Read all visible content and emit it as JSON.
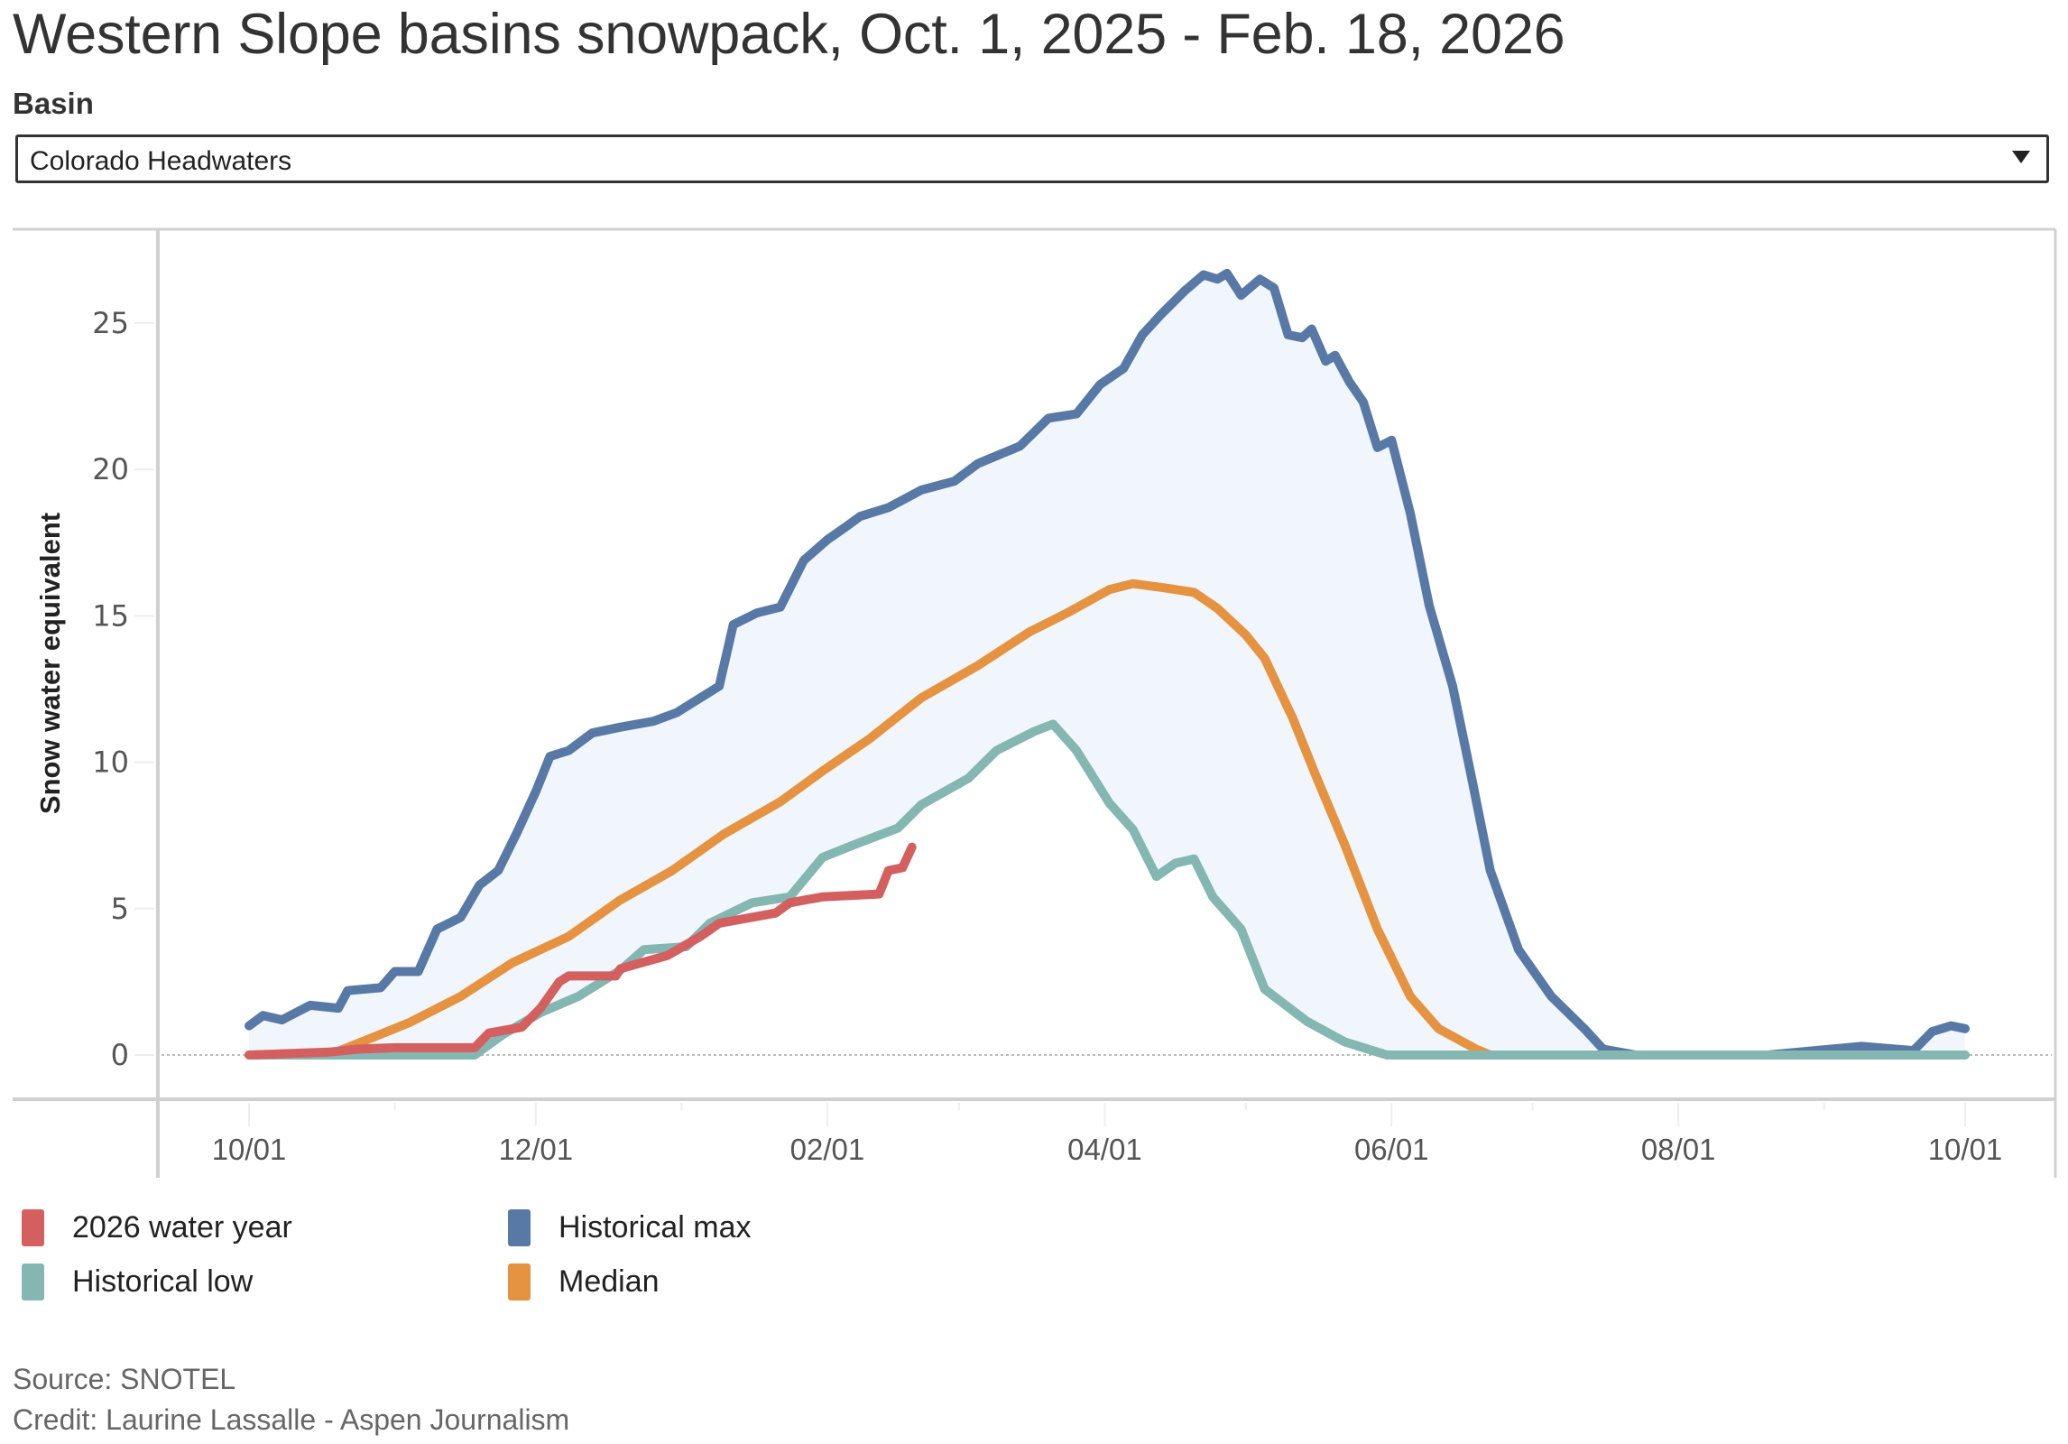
{
  "title": "Western Slope basins snowpack, Oct. 1, 2025 - Feb. 18, 2026",
  "filter": {
    "label": "Basin",
    "selected": "Colorado Headwaters",
    "icon": "triangle-down-icon"
  },
  "legend": [
    {
      "label": "2026 water year",
      "color": "#d45f5f"
    },
    {
      "label": "Historical max",
      "color": "#5879a6"
    },
    {
      "label": "Historical low",
      "color": "#84b6b2"
    },
    {
      "label": "Median",
      "color": "#e69341"
    }
  ],
  "footer": {
    "source": "Source: SNOTEL",
    "credit": "Credit: Laurine Lassalle - Aspen Journalism"
  },
  "chart_data": {
    "type": "line",
    "title": "Western Slope basins snowpack, Oct. 1, 2025 - Feb. 18, 2026",
    "xlabel": "",
    "ylabel": "Snow water equivalent",
    "x_unit": "day of water year (0 = Oct 1)",
    "xlim": [
      0,
      365
    ],
    "ylim": [
      -1.5,
      28.5
    ],
    "yticks": [
      0,
      5,
      10,
      15,
      20,
      25
    ],
    "xticks": [
      {
        "day": 0,
        "label": "10/01"
      },
      {
        "day": 61,
        "label": "12/01"
      },
      {
        "day": 123,
        "label": "02/01"
      },
      {
        "day": 182,
        "label": "04/01"
      },
      {
        "day": 243,
        "label": "06/01"
      },
      {
        "day": 304,
        "label": "08/01"
      },
      {
        "day": 365,
        "label": "10/01"
      }
    ],
    "minor_ticks_days": [
      31,
      92,
      151,
      212,
      273,
      335
    ],
    "grid": false,
    "zero_line": "dotted",
    "band": {
      "between": [
        "Historical low",
        "Historical max"
      ],
      "color": "#f0f6fb"
    },
    "legend_position": "bottom-left",
    "series": [
      {
        "name": "Historical max",
        "color": "#5879a6",
        "points": [
          [
            0,
            1.0
          ],
          [
            3,
            1.35
          ],
          [
            7,
            1.2
          ],
          [
            13,
            1.7
          ],
          [
            19,
            1.6
          ],
          [
            21,
            2.2
          ],
          [
            28,
            2.3
          ],
          [
            31,
            2.85
          ],
          [
            36,
            2.85
          ],
          [
            40,
            4.3
          ],
          [
            45,
            4.7
          ],
          [
            49,
            5.8
          ],
          [
            53,
            6.3
          ],
          [
            57,
            7.6
          ],
          [
            61,
            9.0
          ],
          [
            64,
            10.2
          ],
          [
            68,
            10.4
          ],
          [
            73,
            11.0
          ],
          [
            79,
            11.2
          ],
          [
            86,
            11.4
          ],
          [
            91,
            11.7
          ],
          [
            95,
            12.1
          ],
          [
            100,
            12.6
          ],
          [
            103,
            14.7
          ],
          [
            108,
            15.1
          ],
          [
            113,
            15.3
          ],
          [
            118,
            16.9
          ],
          [
            123,
            17.6
          ],
          [
            127,
            18.05
          ],
          [
            130,
            18.4
          ],
          [
            136,
            18.7
          ],
          [
            143,
            19.3
          ],
          [
            150,
            19.6
          ],
          [
            155,
            20.2
          ],
          [
            164,
            20.8
          ],
          [
            170,
            21.75
          ],
          [
            176,
            21.9
          ],
          [
            181,
            22.9
          ],
          [
            186,
            23.45
          ],
          [
            190,
            24.6
          ],
          [
            194,
            25.3
          ],
          [
            199,
            26.1
          ],
          [
            203,
            26.65
          ],
          [
            206,
            26.5
          ],
          [
            208,
            26.7
          ],
          [
            211,
            25.95
          ],
          [
            215,
            26.5
          ],
          [
            218,
            26.2
          ],
          [
            221,
            24.6
          ],
          [
            224,
            24.5
          ],
          [
            226,
            24.8
          ],
          [
            229,
            23.7
          ],
          [
            231,
            23.9
          ],
          [
            234,
            23.0
          ],
          [
            237,
            22.3
          ],
          [
            240,
            20.75
          ],
          [
            243,
            21.0
          ],
          [
            247,
            18.5
          ],
          [
            251,
            15.35
          ],
          [
            256,
            12.6
          ],
          [
            260,
            9.5
          ],
          [
            264,
            6.3
          ],
          [
            270,
            3.6
          ],
          [
            277,
            2.0
          ],
          [
            284,
            0.9
          ],
          [
            288,
            0.2
          ],
          [
            295,
            0
          ],
          [
            323,
            0
          ],
          [
            343,
            0.3
          ],
          [
            354,
            0.15
          ],
          [
            358,
            0.8
          ],
          [
            362,
            1.0
          ],
          [
            365,
            0.9
          ]
        ]
      },
      {
        "name": "Median",
        "color": "#e69341",
        "points": [
          [
            0,
            0
          ],
          [
            17,
            0
          ],
          [
            24,
            0.45
          ],
          [
            34,
            1.1
          ],
          [
            45,
            2.0
          ],
          [
            56,
            3.15
          ],
          [
            68,
            4.05
          ],
          [
            79,
            5.3
          ],
          [
            90,
            6.3
          ],
          [
            101,
            7.55
          ],
          [
            113,
            8.65
          ],
          [
            122,
            9.7
          ],
          [
            132,
            10.8
          ],
          [
            143,
            12.2
          ],
          [
            155,
            13.3
          ],
          [
            166,
            14.45
          ],
          [
            174,
            15.1
          ],
          [
            183,
            15.9
          ],
          [
            188,
            16.1
          ],
          [
            195,
            15.95
          ],
          [
            201,
            15.8
          ],
          [
            206,
            15.25
          ],
          [
            212,
            14.35
          ],
          [
            216,
            13.55
          ],
          [
            222,
            11.5
          ],
          [
            227,
            9.5
          ],
          [
            233,
            7.2
          ],
          [
            240,
            4.3
          ],
          [
            247,
            2.0
          ],
          [
            253,
            0.9
          ],
          [
            261,
            0.2
          ],
          [
            264,
            0
          ],
          [
            365,
            0
          ]
        ]
      },
      {
        "name": "Historical low",
        "color": "#84b6b2",
        "points": [
          [
            0,
            0
          ],
          [
            48,
            0
          ],
          [
            54,
            0.7
          ],
          [
            62,
            1.45
          ],
          [
            70,
            2.0
          ],
          [
            79,
            2.9
          ],
          [
            84,
            3.6
          ],
          [
            93,
            3.7
          ],
          [
            98,
            4.5
          ],
          [
            107,
            5.2
          ],
          [
            115,
            5.4
          ],
          [
            122,
            6.75
          ],
          [
            129,
            7.2
          ],
          [
            138,
            7.75
          ],
          [
            143,
            8.55
          ],
          [
            153,
            9.45
          ],
          [
            159,
            10.4
          ],
          [
            167,
            11.05
          ],
          [
            171,
            11.3
          ],
          [
            176,
            10.4
          ],
          [
            183,
            8.6
          ],
          [
            188,
            7.7
          ],
          [
            193,
            6.1
          ],
          [
            197,
            6.55
          ],
          [
            201,
            6.7
          ],
          [
            205,
            5.4
          ],
          [
            211,
            4.3
          ],
          [
            216,
            2.25
          ],
          [
            225,
            1.15
          ],
          [
            233,
            0.45
          ],
          [
            242,
            0
          ],
          [
            365,
            0
          ]
        ]
      },
      {
        "name": "2026 water year",
        "color": "#d45f5f",
        "points": [
          [
            0,
            0
          ],
          [
            17,
            0.1
          ],
          [
            23,
            0.2
          ],
          [
            31,
            0.25
          ],
          [
            48,
            0.25
          ],
          [
            51,
            0.75
          ],
          [
            58,
            0.95
          ],
          [
            62,
            1.6
          ],
          [
            66,
            2.5
          ],
          [
            68,
            2.7
          ],
          [
            78,
            2.7
          ],
          [
            79,
            2.95
          ],
          [
            89,
            3.4
          ],
          [
            96,
            4.05
          ],
          [
            100,
            4.5
          ],
          [
            112,
            4.85
          ],
          [
            115,
            5.2
          ],
          [
            122,
            5.4
          ],
          [
            134,
            5.5
          ],
          [
            136,
            6.3
          ],
          [
            139,
            6.4
          ],
          [
            141,
            7.1
          ]
        ]
      }
    ]
  }
}
